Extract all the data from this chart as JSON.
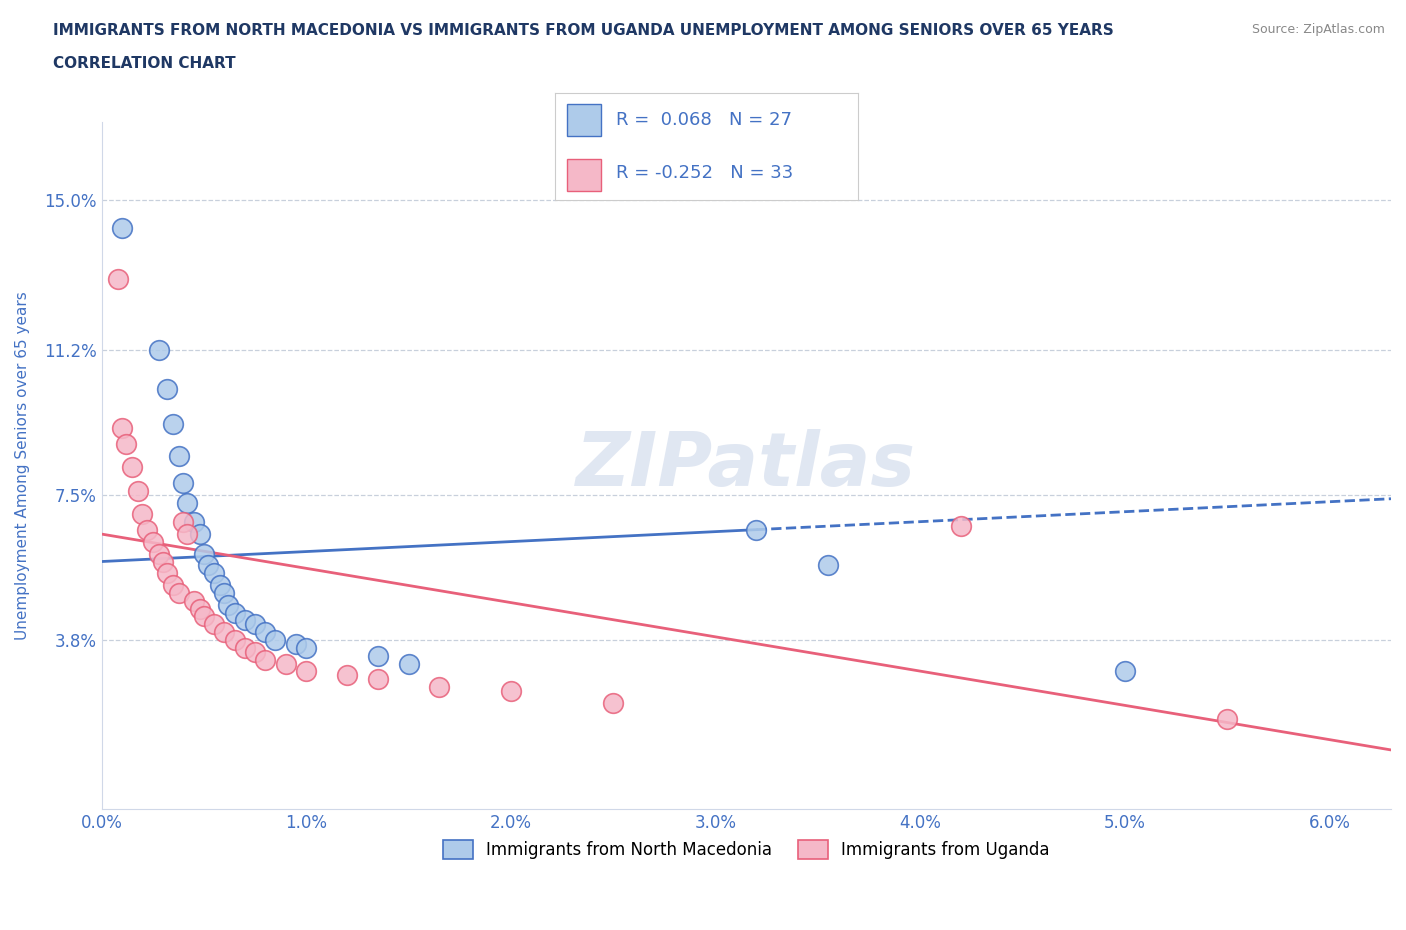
{
  "title_line1": "IMMIGRANTS FROM NORTH MACEDONIA VS IMMIGRANTS FROM UGANDA UNEMPLOYMENT AMONG SENIORS OVER 65 YEARS",
  "title_line2": "CORRELATION CHART",
  "source": "Source: ZipAtlas.com",
  "ylabel": "Unemployment Among Seniors over 65 years",
  "xlim": [
    0.0,
    0.063
  ],
  "ylim": [
    -0.005,
    0.17
  ],
  "yticks": [
    0.038,
    0.075,
    0.112,
    0.15
  ],
  "ytick_labels": [
    "3.8%",
    "7.5%",
    "11.2%",
    "15.0%"
  ],
  "xticks": [
    0.0,
    0.01,
    0.02,
    0.03,
    0.04,
    0.05,
    0.06
  ],
  "xtick_labels": [
    "0.0%",
    "1.0%",
    "2.0%",
    "3.0%",
    "4.0%",
    "5.0%",
    "6.0%"
  ],
  "color_macedonia": "#aecbea",
  "color_uganda": "#f5b8c8",
  "color_trend_macedonia": "#4472c4",
  "color_trend_uganda": "#e8607a",
  "R_macedonia": 0.068,
  "N_macedonia": 27,
  "R_uganda": -0.252,
  "N_uganda": 33,
  "legend_label_macedonia": "Immigrants from North Macedonia",
  "legend_label_uganda": "Immigrants from Uganda",
  "title_color": "#1f3864",
  "tick_label_color": "#4472c4",
  "grid_color": "#c8d0dc",
  "watermark": "ZIPatlas",
  "trend_mac_x0": 0.0,
  "trend_mac_y0": 0.058,
  "trend_mac_x1": 0.063,
  "trend_mac_y1": 0.074,
  "trend_uga_x0": 0.0,
  "trend_uga_y0": 0.065,
  "trend_uga_x1": 0.063,
  "trend_uga_y1": 0.01,
  "trend_mac_solid_end": 0.032,
  "scatter_macedonia": [
    [
      0.001,
      0.143
    ],
    [
      0.0028,
      0.112
    ],
    [
      0.0032,
      0.102
    ],
    [
      0.0035,
      0.093
    ],
    [
      0.0038,
      0.085
    ],
    [
      0.004,
      0.078
    ],
    [
      0.0042,
      0.073
    ],
    [
      0.0045,
      0.068
    ],
    [
      0.0048,
      0.065
    ],
    [
      0.005,
      0.06
    ],
    [
      0.0052,
      0.057
    ],
    [
      0.0055,
      0.055
    ],
    [
      0.0058,
      0.052
    ],
    [
      0.006,
      0.05
    ],
    [
      0.0062,
      0.047
    ],
    [
      0.0065,
      0.045
    ],
    [
      0.007,
      0.043
    ],
    [
      0.0075,
      0.042
    ],
    [
      0.008,
      0.04
    ],
    [
      0.0085,
      0.038
    ],
    [
      0.0095,
      0.037
    ],
    [
      0.01,
      0.036
    ],
    [
      0.0135,
      0.034
    ],
    [
      0.015,
      0.032
    ],
    [
      0.032,
      0.066
    ],
    [
      0.0355,
      0.057
    ],
    [
      0.05,
      0.03
    ]
  ],
  "scatter_uganda": [
    [
      0.0008,
      0.13
    ],
    [
      0.001,
      0.092
    ],
    [
      0.0012,
      0.088
    ],
    [
      0.0015,
      0.082
    ],
    [
      0.0018,
      0.076
    ],
    [
      0.002,
      0.07
    ],
    [
      0.0022,
      0.066
    ],
    [
      0.0025,
      0.063
    ],
    [
      0.0028,
      0.06
    ],
    [
      0.003,
      0.058
    ],
    [
      0.0032,
      0.055
    ],
    [
      0.0035,
      0.052
    ],
    [
      0.0038,
      0.05
    ],
    [
      0.004,
      0.068
    ],
    [
      0.0042,
      0.065
    ],
    [
      0.0045,
      0.048
    ],
    [
      0.0048,
      0.046
    ],
    [
      0.005,
      0.044
    ],
    [
      0.0055,
      0.042
    ],
    [
      0.006,
      0.04
    ],
    [
      0.0065,
      0.038
    ],
    [
      0.007,
      0.036
    ],
    [
      0.0075,
      0.035
    ],
    [
      0.008,
      0.033
    ],
    [
      0.009,
      0.032
    ],
    [
      0.01,
      0.03
    ],
    [
      0.012,
      0.029
    ],
    [
      0.0135,
      0.028
    ],
    [
      0.0165,
      0.026
    ],
    [
      0.02,
      0.025
    ],
    [
      0.025,
      0.022
    ],
    [
      0.042,
      0.067
    ],
    [
      0.055,
      0.018
    ]
  ]
}
